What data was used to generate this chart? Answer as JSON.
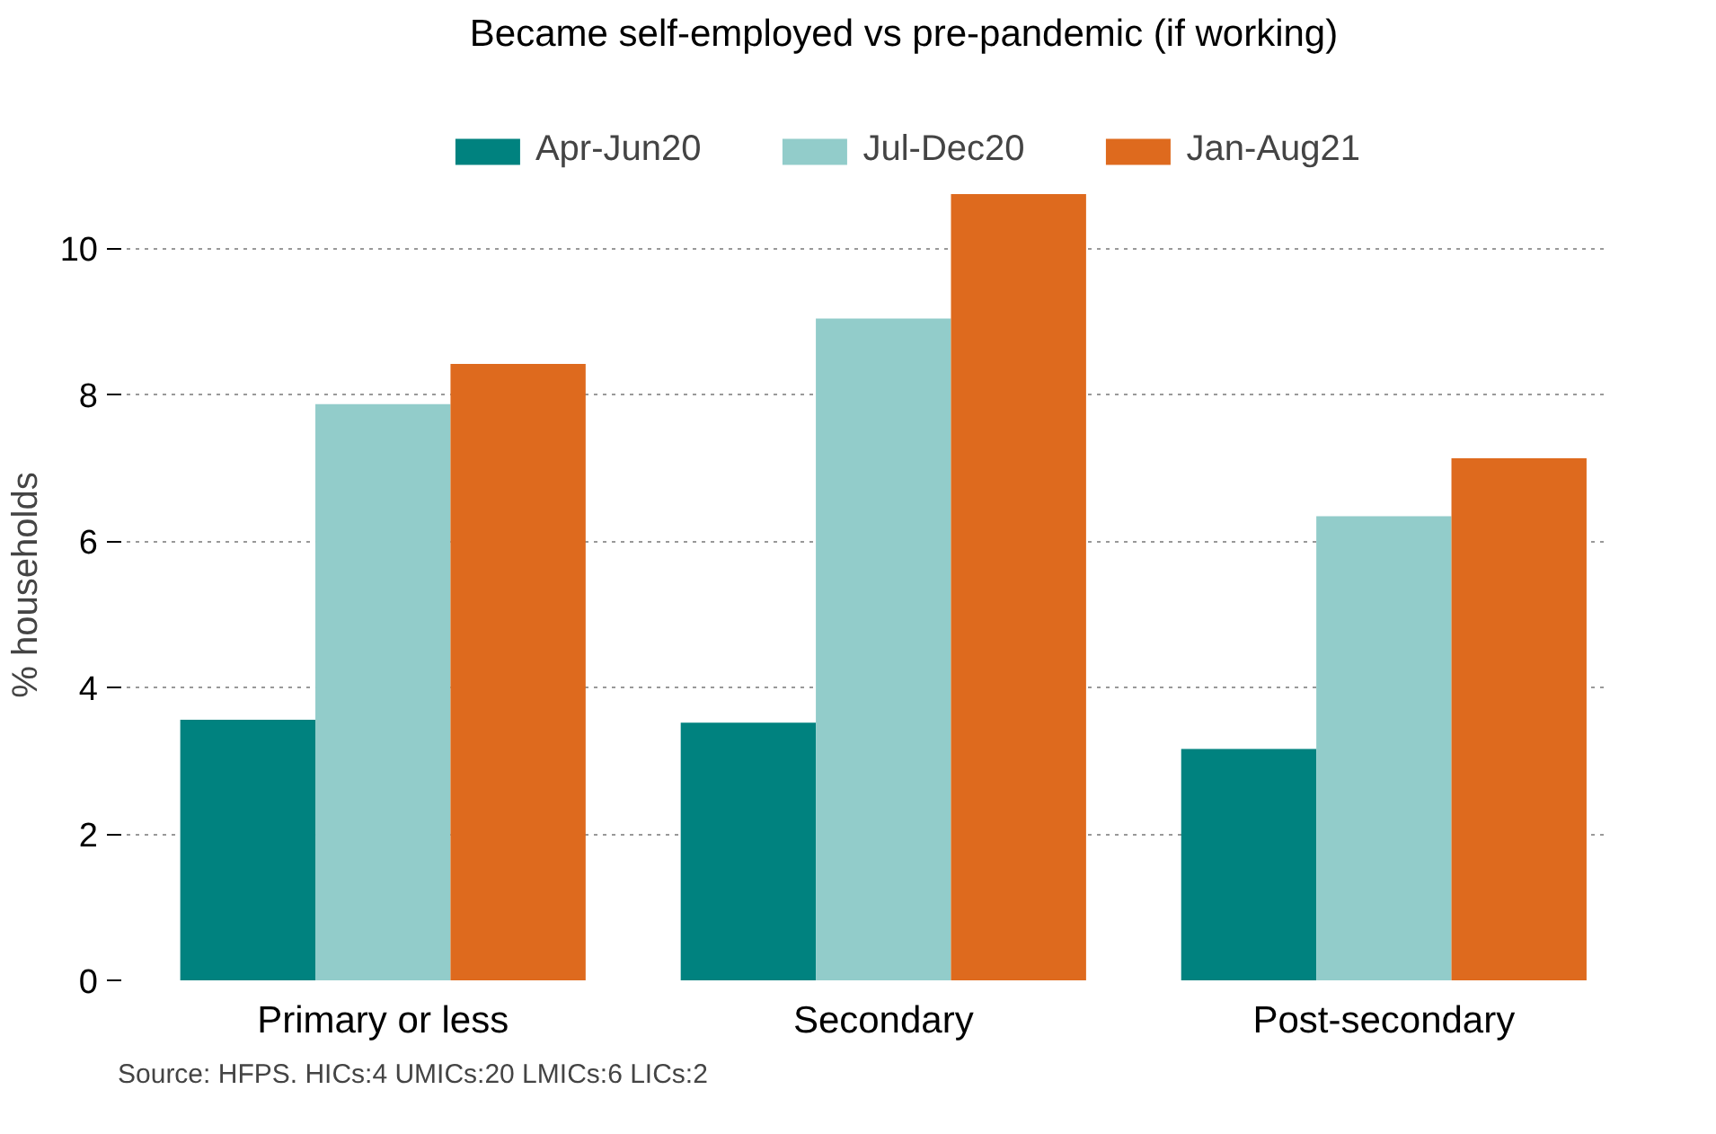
{
  "chart_data": {
    "type": "bar",
    "title": "Became self-employed vs pre-pandemic (if working)",
    "ylabel": "% households",
    "categories": [
      "Primary or less",
      "Secondary",
      "Post-secondary"
    ],
    "series": [
      {
        "name": "Apr-Jun20",
        "color": "#00827f",
        "values": [
          3.56,
          3.52,
          3.16
        ]
      },
      {
        "name": "Jul-Dec20",
        "color": "#92ccca",
        "values": [
          7.87,
          9.04,
          6.34
        ]
      },
      {
        "name": "Jan-Aug21",
        "color": "#de6a1e",
        "values": [
          8.42,
          10.74,
          7.13
        ]
      }
    ],
    "ylim": [
      0,
      10.8
    ],
    "yticks": [
      0,
      2,
      4,
      6,
      8,
      10
    ],
    "grid": "y",
    "legend": "top",
    "annotations": [
      "Source: HFPS. HICs:4 UMICs:20 LMICs:6 LICs:2"
    ]
  }
}
